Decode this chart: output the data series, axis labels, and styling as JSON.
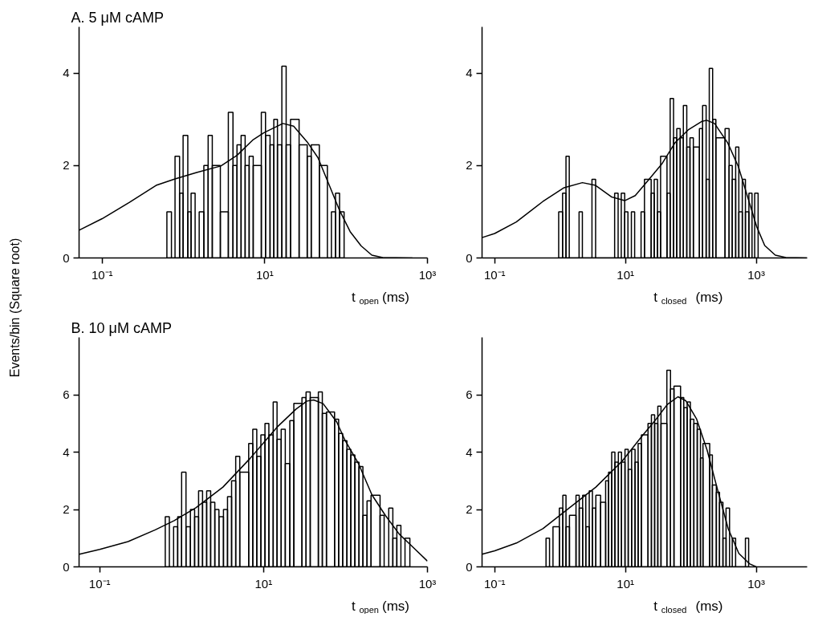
{
  "chart_data": [
    {
      "type": "histogram",
      "title": "A. 5 μM cAMP",
      "xlabel": "t$_{open}$ (ms)",
      "ylabel": "Events/bin (Square root)",
      "log": "x",
      "xlim": [
        0.052,
        1000
      ],
      "ylim": [
        0,
        5
      ],
      "xticks": [
        {
          "value": 0.1,
          "label": "10⁻¹"
        },
        {
          "value": 10,
          "label": "10¹"
        },
        {
          "value": 1000,
          "label": "10³"
        }
      ],
      "yticks": [
        0,
        2,
        4
      ],
      "color": "#000000",
      "bins": [
        0.625,
        0.711,
        0.787,
        0.895,
        0.989,
        1.13,
        1.24,
        1.39,
        1.56,
        1.78,
        2.01,
        2.26,
        2.84,
        3.56,
        4.06,
        4.55,
        5.11,
        5.73,
        6.42,
        7.2,
        9.06,
        10.2,
        11.6,
        12.9,
        14.3,
        16.2,
        18.3,
        20.7,
        26.4,
        33.2,
        37.2,
        46.8,
        58.8,
        65.9,
        74.0,
        83.0,
        94.4
      ],
      "values": [
        1.0,
        0,
        2.2,
        1.4,
        2.65,
        1.0,
        1.4,
        0,
        1.0,
        2.0,
        2.65,
        2.0,
        1.0,
        3.15,
        2.0,
        2.45,
        2.65,
        2.0,
        2.2,
        2.0,
        3.15,
        2.65,
        2.45,
        3.0,
        2.45,
        4.15,
        2.45,
        3.0,
        2.45,
        2.2,
        2.45,
        2.0,
        0,
        1.0,
        1.4,
        1.0
      ],
      "series": [
        {
          "type": "line",
          "color": "#000000",
          "x": [
            0.0522,
            0.1,
            0.215,
            0.46,
            0.787,
            1.45,
            2.88,
            4.55,
            7.2,
            9.77,
            16.7,
            22.6,
            33.2,
            45.0,
            61.1,
            83.0,
            112,
            153,
            207,
            281,
            652
          ],
          "values": [
            0.6,
            0.85,
            1.2,
            1.57,
            1.71,
            1.85,
            1.99,
            2.22,
            2.56,
            2.71,
            2.91,
            2.85,
            2.51,
            2.17,
            1.6,
            1.03,
            0.57,
            0.26,
            0.06,
            0.01,
            0
          ]
        }
      ]
    },
    {
      "type": "histogram",
      "xlabel": "t$_{closed}$ (ms)",
      "log": "x",
      "xlim": [
        0.064,
        6000
      ],
      "ylim": [
        0,
        5
      ],
      "xticks": [
        {
          "value": 0.1,
          "label": "10⁻¹"
        },
        {
          "value": 10,
          "label": "10¹"
        },
        {
          "value": 1000,
          "label": "10³"
        }
      ],
      "yticks": [
        0,
        2,
        4
      ],
      "color": "#000000",
      "bins": [
        0.951,
        1.09,
        1.23,
        1.38,
        1.95,
        2.19,
        3.07,
        3.49,
        6.82,
        7.71,
        8.61,
        9.72,
        10.9,
        12.3,
        13.8,
        17.3,
        19.5,
        24.7,
        27.5,
        30.8,
        34.4,
        43.1,
        48.2,
        54.3,
        60.8,
        68.6,
        76.7,
        86.5,
        96.8,
        109,
        135,
        151,
        171,
        191,
        215,
        241,
        333,
        384,
        429,
        484,
        541,
        611,
        682,
        771,
        861,
        946,
        1067
      ],
      "values": [
        1.0,
        1.4,
        2.2,
        0,
        1.0,
        0,
        1.7,
        0,
        1.4,
        0,
        1.4,
        1.0,
        0,
        1.0,
        0,
        1.0,
        1.7,
        1.4,
        1.7,
        1.0,
        2.2,
        1.4,
        3.45,
        2.6,
        2.8,
        2.6,
        3.3,
        2.4,
        2.6,
        2.4,
        2.8,
        3.3,
        1.7,
        4.1,
        3.0,
        2.6,
        2.8,
        2.0,
        1.7,
        2.4,
        1.0,
        1.7,
        1.0,
        1.4,
        0,
        1.4
      ],
      "series": [
        {
          "type": "line",
          "color": "#000000",
          "x": [
            0.064,
            0.1,
            0.214,
            0.543,
            1.15,
            2.19,
            3.49,
            6.11,
            9.72,
            14.1,
            22.5,
            35.8,
            57.0,
            90.8,
            145,
            174,
            230,
            366,
            531,
            771,
            1019,
            1346,
            1954,
            2838,
            5970
          ],
          "values": [
            0.44,
            0.53,
            0.78,
            1.22,
            1.52,
            1.63,
            1.57,
            1.32,
            1.24,
            1.35,
            1.69,
            2.03,
            2.49,
            2.77,
            2.95,
            2.98,
            2.91,
            2.49,
            1.98,
            1.23,
            0.67,
            0.27,
            0.06,
            0.01,
            0
          ]
        }
      ]
    },
    {
      "type": "histogram",
      "title": "B. 10 μM cAMP",
      "xlabel": "t$_{open}$ (ms)",
      "log": "x",
      "xlim": [
        0.056,
        1000
      ],
      "ylim": [
        0,
        8
      ],
      "xticks": [
        {
          "value": 0.1,
          "label": "10⁻¹"
        },
        {
          "value": 10,
          "label": "10¹"
        },
        {
          "value": 1000,
          "label": "10³"
        }
      ],
      "yticks": [
        0,
        2,
        4,
        6
      ],
      "color": "#000000",
      "bins": [
        0.631,
        0.708,
        0.798,
        0.895,
        1.0,
        1.13,
        1.28,
        1.44,
        1.61,
        1.8,
        2.02,
        2.26,
        2.54,
        2.85,
        3.24,
        3.63,
        4.07,
        4.57,
        5.12,
        6.58,
        7.38,
        8.26,
        9.27,
        10.4,
        11.6,
        13.1,
        14.6,
        16.4,
        18.4,
        20.9,
        23.4,
        29.4,
        33.0,
        37.1,
        46.6,
        52.1,
        58.5,
        73.5,
        82.4,
        92.3,
        104,
        116,
        130,
        146,
        163,
        183,
        205,
        264,
        296,
        337,
        378,
        423,
        474,
        532,
        610
      ],
      "values": [
        1.75,
        0,
        1.4,
        1.75,
        3.3,
        1.4,
        2.0,
        1.75,
        2.65,
        2.25,
        2.65,
        2.25,
        2.0,
        1.75,
        2.0,
        2.45,
        3.0,
        3.85,
        3.3,
        4.3,
        4.8,
        3.85,
        4.6,
        5.0,
        4.6,
        5.75,
        4.45,
        4.8,
        3.6,
        5.1,
        5.7,
        5.9,
        6.1,
        5.9,
        6.1,
        5.35,
        5.4,
        5.15,
        4.65,
        4.4,
        4.1,
        3.9,
        3.65,
        3.5,
        1.8,
        2.3,
        2.5,
        1.8,
        0,
        2.05,
        1.0,
        1.45,
        0,
        1.0
      ],
      "series": [
        {
          "type": "line",
          "color": "#000000",
          "x": [
            0.0565,
            0.1,
            0.222,
            0.476,
            0.811,
            1.49,
            3.19,
            6.84,
            14.6,
            24.9,
            33.8,
            40.9,
            53.3,
            78.2,
            98.2,
            144,
            210,
            307,
            450,
            658,
            1000
          ],
          "values": [
            0.44,
            0.61,
            0.88,
            1.29,
            1.61,
            2.06,
            2.78,
            3.78,
            4.87,
            5.5,
            5.78,
            5.82,
            5.69,
            5.05,
            4.42,
            3.6,
            2.51,
            1.79,
            1.15,
            0.7,
            0.2
          ]
        }
      ]
    },
    {
      "type": "histogram",
      "xlabel": "t$_{closed}$ (ms)",
      "log": "x",
      "xlim": [
        0.064,
        6000
      ],
      "ylim": [
        0,
        8
      ],
      "xticks": [
        {
          "value": 0.1,
          "label": "10⁻¹"
        },
        {
          "value": 10,
          "label": "10¹"
        },
        {
          "value": 1000,
          "label": "10³"
        }
      ],
      "yticks": [
        0,
        2,
        4,
        6
      ],
      "color": "#000000",
      "bins": [
        0.609,
        0.689,
        0.778,
        0.973,
        1.1,
        1.23,
        1.39,
        1.75,
        1.96,
        2.21,
        2.47,
        2.79,
        3.12,
        3.52,
        4.16,
        4.97,
        5.51,
        6.15,
        6.89,
        7.78,
        8.69,
        9.82,
        11.0,
        12.4,
        14.0,
        15.6,
        17.5,
        22.1,
        24.9,
        27.9,
        31.2,
        34.9,
        42.9,
        48.8,
        55.1,
        69.5,
        77.8,
        87.7,
        98.2,
        111,
        125,
        140,
        153,
        194,
        213,
        245,
        274,
        309,
        345,
        390,
        429,
        483,
        682,
        764
      ],
      "values": [
        1.0,
        0,
        1.4,
        2.05,
        2.5,
        1.4,
        1.8,
        2.5,
        2.05,
        2.5,
        1.4,
        2.65,
        2.05,
        2.5,
        2.25,
        3.0,
        3.3,
        4.0,
        3.65,
        4.0,
        3.65,
        4.1,
        3.4,
        4.1,
        3.65,
        4.3,
        4.6,
        5.0,
        5.3,
        5.0,
        5.6,
        5.0,
        6.85,
        6.2,
        6.3,
        5.9,
        5.55,
        5.75,
        5.15,
        5.0,
        4.8,
        3.8,
        4.3,
        3.9,
        2.85,
        2.6,
        2.25,
        1.0,
        2.05,
        0,
        1.0,
        0,
        1.0
      ],
      "series": [
        {
          "type": "line",
          "color": "#000000",
          "x": [
            0.064,
            0.1,
            0.215,
            0.546,
            1.39,
            3.52,
            8.93,
            17.2,
            27.4,
            43.6,
            63.4,
            83.8,
            122,
            177,
            256,
            372,
            541,
            785,
            1000
          ],
          "values": [
            0.44,
            0.56,
            0.83,
            1.33,
            2.06,
            2.78,
            3.69,
            4.51,
            5.06,
            5.66,
            5.93,
            5.79,
            5.16,
            4.07,
            2.69,
            1.33,
            0.47,
            0.11,
            0
          ]
        }
      ]
    }
  ]
}
